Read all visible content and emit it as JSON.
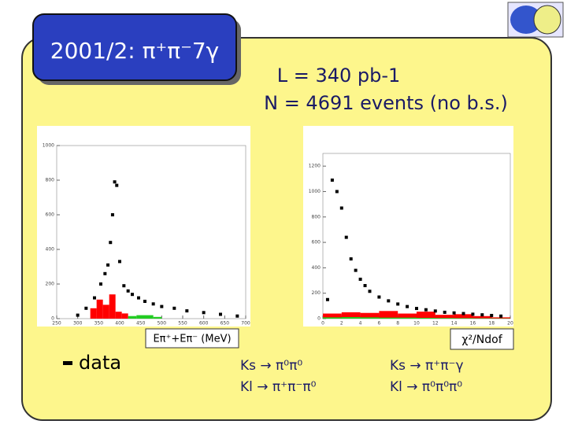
{
  "title": "2001/2: π⁺π⁻7γ",
  "luminosity": "L = 340 pb-1",
  "events": "N = 4691 events (no b.s.)",
  "chart_data": [
    {
      "type": "scatter",
      "x_label": "Eπ⁺+Eπ⁻ (MeV)",
      "xlim": [
        250,
        700
      ],
      "xticks": [
        250,
        300,
        350,
        400,
        450,
        500,
        550,
        600,
        650,
        700
      ],
      "ylim": [
        0,
        1000
      ],
      "yticks": [
        0,
        200,
        400,
        600,
        800,
        1000
      ],
      "x": [
        300,
        320,
        340,
        355,
        365,
        372,
        378,
        383,
        388,
        393,
        400,
        410,
        420,
        430,
        445,
        460,
        480,
        500,
        530,
        560,
        600,
        640,
        680
      ],
      "series": [
        {
          "name": "data",
          "color": "#000000",
          "values": [
            20,
            60,
            120,
            200,
            260,
            310,
            440,
            600,
            790,
            770,
            330,
            190,
            160,
            140,
            120,
            100,
            85,
            70,
            60,
            45,
            35,
            25,
            15
          ]
        }
      ],
      "hists": [
        {
          "name": "Ks → π⁰π⁰",
          "color": "#ff0000",
          "bins": [
            330,
            345,
            360,
            375,
            390,
            405,
            420
          ],
          "values": [
            60,
            110,
            80,
            140,
            40,
            30
          ]
        },
        {
          "name": "Kl → π⁺π⁻π⁰",
          "color": "#22cc22",
          "bins": [
            420,
            440,
            460,
            480,
            500
          ],
          "values": [
            15,
            20,
            20,
            10
          ]
        }
      ]
    },
    {
      "type": "scatter",
      "x_label": "χ²/Ndof",
      "xlim": [
        0,
        20
      ],
      "xticks": [
        0,
        2,
        4,
        6,
        8,
        10,
        12,
        14,
        16,
        18,
        20
      ],
      "ylim": [
        0,
        1300
      ],
      "yticks": [
        0,
        200,
        400,
        600,
        800,
        1000,
        1200
      ],
      "x": [
        0.5,
        1,
        1.5,
        2,
        2.5,
        3,
        3.5,
        4,
        4.5,
        5,
        6,
        7,
        8,
        9,
        10,
        11,
        12,
        13,
        14,
        15,
        16,
        17,
        18,
        19
      ],
      "series": [
        {
          "color": "#000000",
          "values": [
            150,
            1090,
            1000,
            870,
            640,
            470,
            380,
            310,
            260,
            215,
            170,
            140,
            115,
            95,
            80,
            70,
            60,
            50,
            45,
            40,
            35,
            30,
            25,
            20
          ]
        }
      ],
      "hists": [
        {
          "name": "Ks → π⁺π⁻γ",
          "color": "#ff0000",
          "bins": [
            0,
            2,
            4,
            6,
            8,
            10,
            12,
            14,
            16,
            18,
            20
          ],
          "values": [
            40,
            50,
            45,
            60,
            40,
            55,
            30,
            35,
            20,
            10
          ]
        },
        {
          "name": "Kl → π⁰π⁰π⁰",
          "color": "#22cc22",
          "bins": [
            0,
            2,
            4,
            6,
            8,
            10,
            12,
            14,
            16,
            18,
            20
          ],
          "values": [
            10,
            12,
            10,
            8,
            8,
            6,
            5,
            4,
            3,
            2
          ]
        }
      ]
    }
  ]
}
